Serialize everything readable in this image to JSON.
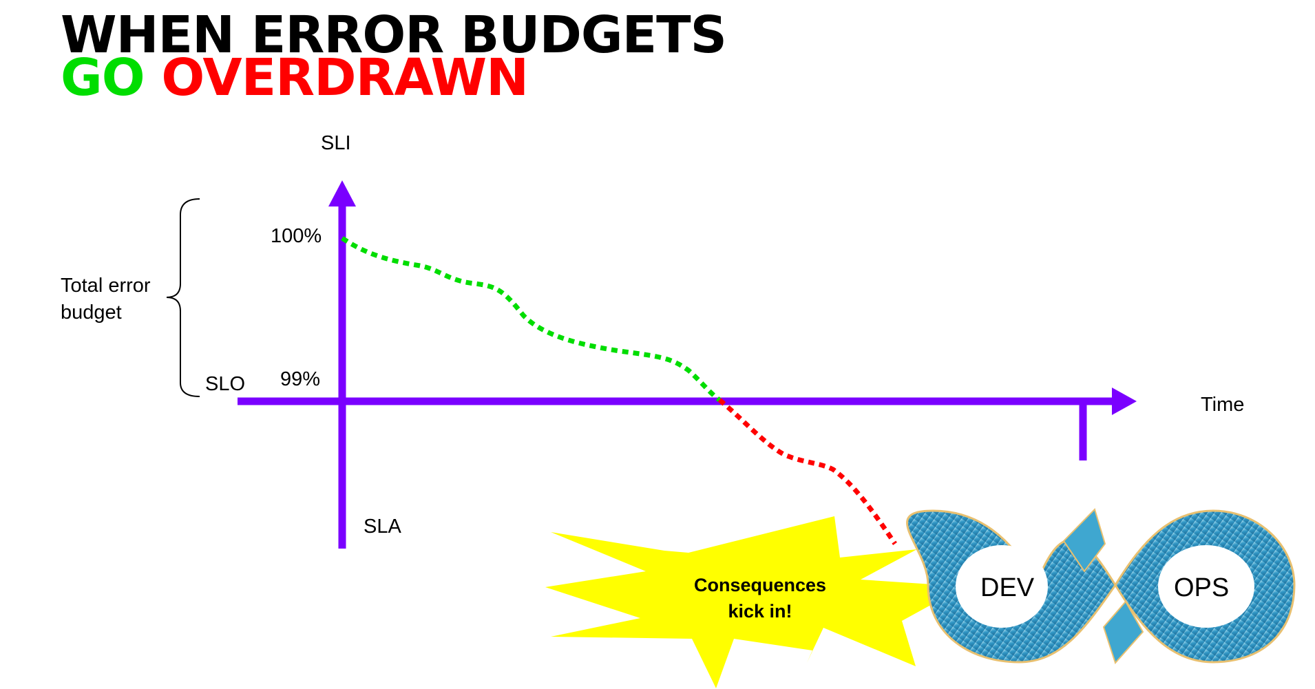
{
  "title": {
    "line1": "WHEN ERROR BUDGETS",
    "line2_word1": "GO",
    "line2_word2": "OVERDRAWN"
  },
  "axes": {
    "y_label": "SLI",
    "x_label": "Time",
    "top_value": "100%",
    "slo_value": "99%",
    "slo_label": "SLO",
    "sla_label": "SLA"
  },
  "bracket_label_line1": "Total error",
  "bracket_label_line2": "budget",
  "callout": {
    "line1": "Consequences",
    "line2": "kick in!"
  },
  "devops_logo": {
    "left": "DEV",
    "right": "OPS"
  },
  "colors": {
    "axis": "#7a00ff",
    "within_budget": "#00dd00",
    "overdrawn": "#ff0000",
    "callout_fill": "#ffff00",
    "logo_blue": "#3fa7d0"
  }
}
